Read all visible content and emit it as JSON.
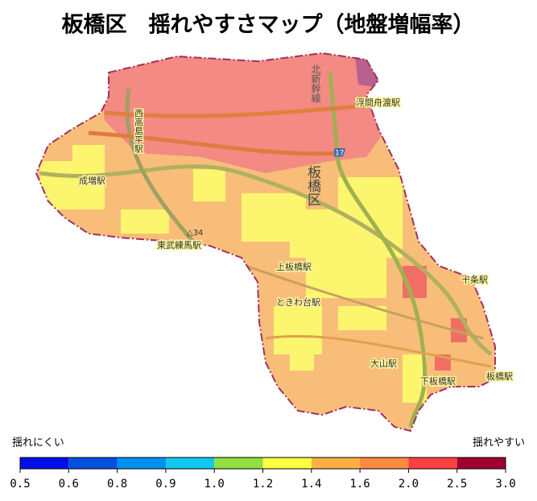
{
  "title": "板橋区　揺れやすさマップ（地盤増幅率）",
  "map": {
    "district_label": "板橋区",
    "stations": [
      "浮間舟渡駅",
      "西高島平駅",
      "成増駅",
      "東武練馬駅",
      "上板橋駅",
      "ときわ台駅",
      "十条駅",
      "大山駅",
      "下板橋駅",
      "板橋駅"
    ],
    "rail_label": "北新幹線",
    "road_numbers": [
      "17",
      "△34"
    ]
  },
  "legend": {
    "low_label": "揺れにくい",
    "high_label": "揺れやすい",
    "colors": [
      "#0010e8",
      "#0050e0",
      "#0090f0",
      "#10c8f0",
      "#90e040",
      "#ffff40",
      "#ffb040",
      "#ff8a40",
      "#ff4040",
      "#a00030"
    ],
    "ticks": [
      "0.5",
      "0.6",
      "0.8",
      "0.9",
      "1.0",
      "1.2",
      "1.4",
      "1.6",
      "2.0",
      "2.5",
      "3.0"
    ]
  }
}
